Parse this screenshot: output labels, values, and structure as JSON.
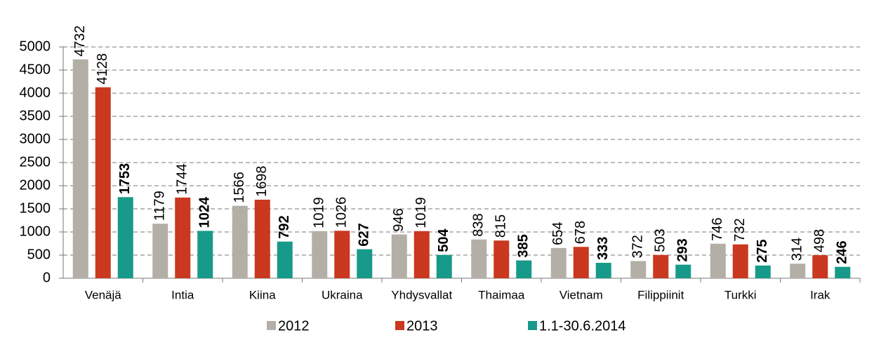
{
  "chart_data": {
    "type": "bar",
    "categories": [
      "Venäjä",
      "Intia",
      "Kiina",
      "Ukraina",
      "Yhdysvallat",
      "Thaimaa",
      "Vietnam",
      "Filippiinit",
      "Turkki",
      "Irak"
    ],
    "series": [
      {
        "name": "2012",
        "color": "#b3afa7",
        "values": [
          4732,
          1179,
          1566,
          1019,
          946,
          838,
          654,
          372,
          746,
          314
        ]
      },
      {
        "name": "2013",
        "color": "#c9381f",
        "values": [
          4128,
          1744,
          1698,
          1026,
          1019,
          815,
          678,
          503,
          732,
          498
        ]
      },
      {
        "name": "1.1-30.6.2014",
        "color": "#179a89",
        "values": [
          1753,
          1024,
          792,
          627,
          504,
          385,
          333,
          293,
          275,
          246
        ]
      }
    ],
    "ylim": [
      0,
      5000
    ],
    "yticks": [
      0,
      500,
      1000,
      1500,
      2000,
      2500,
      3000,
      3500,
      4000,
      4500,
      5000
    ],
    "grid": true,
    "legend": "bottom"
  }
}
